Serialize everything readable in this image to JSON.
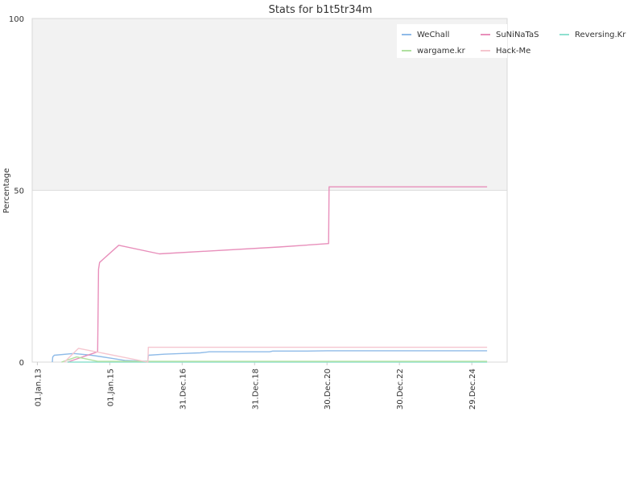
{
  "chart_data": {
    "type": "line",
    "title": "Stats for b1t5tr34m",
    "xlabel": "",
    "ylabel": "Percentage",
    "ylim": [
      0,
      100
    ],
    "xlim": [
      "2012-11-10",
      "2025-12-20"
    ],
    "grid": true,
    "legend_position": "top-right",
    "y_ticks": [
      {
        "value": 0,
        "label": "0"
      },
      {
        "value": 50,
        "label": "50"
      },
      {
        "value": 100,
        "label": "100"
      }
    ],
    "x_ticks": [
      {
        "date": "2013-01-01",
        "label": "01.Jan.13"
      },
      {
        "date": "2015-01-01",
        "label": "01.Jan.15"
      },
      {
        "date": "2016-12-31",
        "label": "31.Dec.16"
      },
      {
        "date": "2018-12-31",
        "label": "31.Dec.18"
      },
      {
        "date": "2020-12-30",
        "label": "30.Dec.20"
      },
      {
        "date": "2022-12-30",
        "label": "30.Dec.22"
      },
      {
        "date": "2024-12-29",
        "label": "29.Dec.24"
      }
    ],
    "shaded_band": {
      "from": 50,
      "to": 100,
      "color": "#f2f2f2"
    },
    "series": [
      {
        "name": "WeChall",
        "color": "#8fbbe8",
        "points": [
          [
            "2013-06-01",
            0
          ],
          [
            "2013-06-05",
            1.5
          ],
          [
            "2013-06-20",
            2
          ],
          [
            "2014-01-01",
            2.5
          ],
          [
            "2014-07-01",
            2
          ],
          [
            "2015-01-01",
            1.2
          ],
          [
            "2015-06-01",
            0.5
          ],
          [
            "2016-01-20",
            0.2
          ],
          [
            "2016-01-25",
            2
          ],
          [
            "2016-07-01",
            2.3
          ],
          [
            "2017-01-01",
            2.5
          ],
          [
            "2017-07-01",
            2.7
          ],
          [
            "2017-10-01",
            3
          ],
          [
            "2018-06-01",
            3
          ],
          [
            "2019-06-01",
            3
          ],
          [
            "2019-07-01",
            3.2
          ],
          [
            "2020-06-01",
            3.2
          ],
          [
            "2021-01-01",
            3.3
          ],
          [
            "2022-06-01",
            3.3
          ],
          [
            "2024-01-01",
            3.3
          ],
          [
            "2025-06-01",
            3.3
          ]
        ]
      },
      {
        "name": "SuNiNaTaS",
        "color": "#e88fbb",
        "points": [
          [
            "2013-11-01",
            0
          ],
          [
            "2014-09-01",
            3
          ],
          [
            "2014-09-10",
            27
          ],
          [
            "2014-09-20",
            29
          ],
          [
            "2015-04-01",
            34
          ],
          [
            "2016-05-15",
            31.5
          ],
          [
            "2019-09-01",
            33.5
          ],
          [
            "2021-01-15",
            34.5
          ],
          [
            "2021-01-20",
            51
          ],
          [
            "2025-06-01",
            51
          ]
        ]
      },
      {
        "name": "Reversing.Kr",
        "color": "#8fe0d0",
        "points": [
          [
            "2013-11-01",
            0
          ],
          [
            "2025-06-01",
            0
          ]
        ]
      },
      {
        "name": "wargame.kr",
        "color": "#b0e0a0",
        "points": [
          [
            "2013-09-01",
            0
          ],
          [
            "2014-02-01",
            1.5
          ],
          [
            "2014-09-01",
            0.2
          ],
          [
            "2025-06-01",
            0.2
          ]
        ]
      },
      {
        "name": "Hack-Me",
        "color": "#f5c6cf",
        "points": [
          [
            "2013-10-01",
            0
          ],
          [
            "2014-02-20",
            4
          ],
          [
            "2016-01-20",
            0
          ],
          [
            "2016-01-25",
            4.3
          ],
          [
            "2025-06-01",
            4.3
          ]
        ]
      }
    ],
    "legend_order": [
      "WeChall",
      "SuNiNaTaS",
      "Reversing.Kr",
      "wargame.kr",
      "Hack-Me"
    ]
  }
}
